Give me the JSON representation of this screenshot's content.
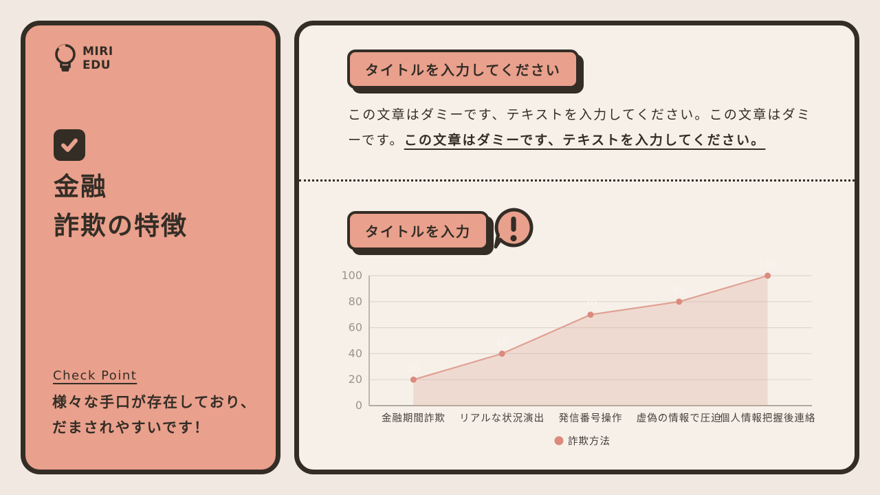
{
  "page": {
    "background": "#f1e9e1",
    "ink": "#332d26",
    "accent_salmon": "#e9a08c"
  },
  "left_panel": {
    "brand_line1": "MIRI",
    "brand_line2": "EDU",
    "title_line1": "金融",
    "title_line2": "詐欺の特徴",
    "check_point_label": "Check Point",
    "note_line1": "様々な手口が存在しており、",
    "note_line2": "だまされやすいです！"
  },
  "right_panel": {
    "section1": {
      "title": "タイトルを入力してください",
      "body_normal": "この文章はダミーです、テキストを入力してください。この文章はダミーです。",
      "body_emphasis": "この文章はダミーです、テキストを入力してください。"
    },
    "section2": {
      "title": "タイトルを入力"
    }
  },
  "chart_data": {
    "type": "area",
    "title": "",
    "categories": [
      "金融期間詐欺",
      "リアルな状況演出",
      "発信番号操作",
      "虚偽の情報で圧迫",
      "個人情報把握後連絡"
    ],
    "values": [
      20,
      40,
      70,
      80,
      100
    ],
    "series_name": "詐欺方法",
    "xlabel": "",
    "ylabel": "",
    "ylim": [
      0,
      100
    ],
    "yticks": [
      0,
      20,
      40,
      60,
      80,
      100
    ],
    "grid": true,
    "legend_position": "bottom",
    "data_labels": true,
    "colors": {
      "line": "#dfa093",
      "fill": "rgba(223,160,147,0.28)",
      "point": "#db8a7d",
      "grid": "#ded7d0",
      "axis": "#b2a99f",
      "tick_label": "#9b948c",
      "x_label": "#45403a",
      "data_label": "#f9f4ee",
      "legend_text": "#45403a"
    }
  }
}
